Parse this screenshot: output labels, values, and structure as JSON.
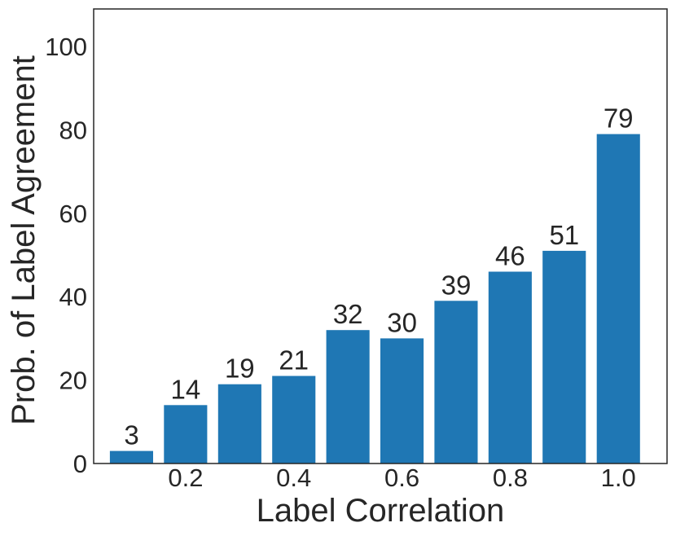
{
  "chart_data": {
    "type": "bar",
    "xlabel": "Label Correlation",
    "ylabel": "Prob. of Label Agreement",
    "x": [
      0.1,
      0.2,
      0.3,
      0.4,
      0.5,
      0.6,
      0.7,
      0.8,
      0.9,
      1.0
    ],
    "values": [
      3,
      14,
      19,
      21,
      32,
      30,
      39,
      46,
      51,
      79
    ],
    "data_labels": [
      "3",
      "14",
      "19",
      "21",
      "32",
      "30",
      "39",
      "46",
      "51",
      "79"
    ],
    "xticks": [
      "0.2",
      "0.4",
      "0.6",
      "0.8",
      "1.0"
    ],
    "xtick_values": [
      0.2,
      0.4,
      0.6,
      0.8,
      1.0
    ],
    "yticks": [
      "0",
      "20",
      "40",
      "60",
      "80",
      "100"
    ],
    "ytick_values": [
      0,
      20,
      40,
      60,
      80,
      100
    ],
    "xlim": [
      0.03,
      1.09
    ],
    "ylim": [
      0,
      109
    ],
    "grid": false,
    "colors": {
      "bar": "#1f77b4",
      "axes": "#262626",
      "text": "#262626"
    }
  }
}
